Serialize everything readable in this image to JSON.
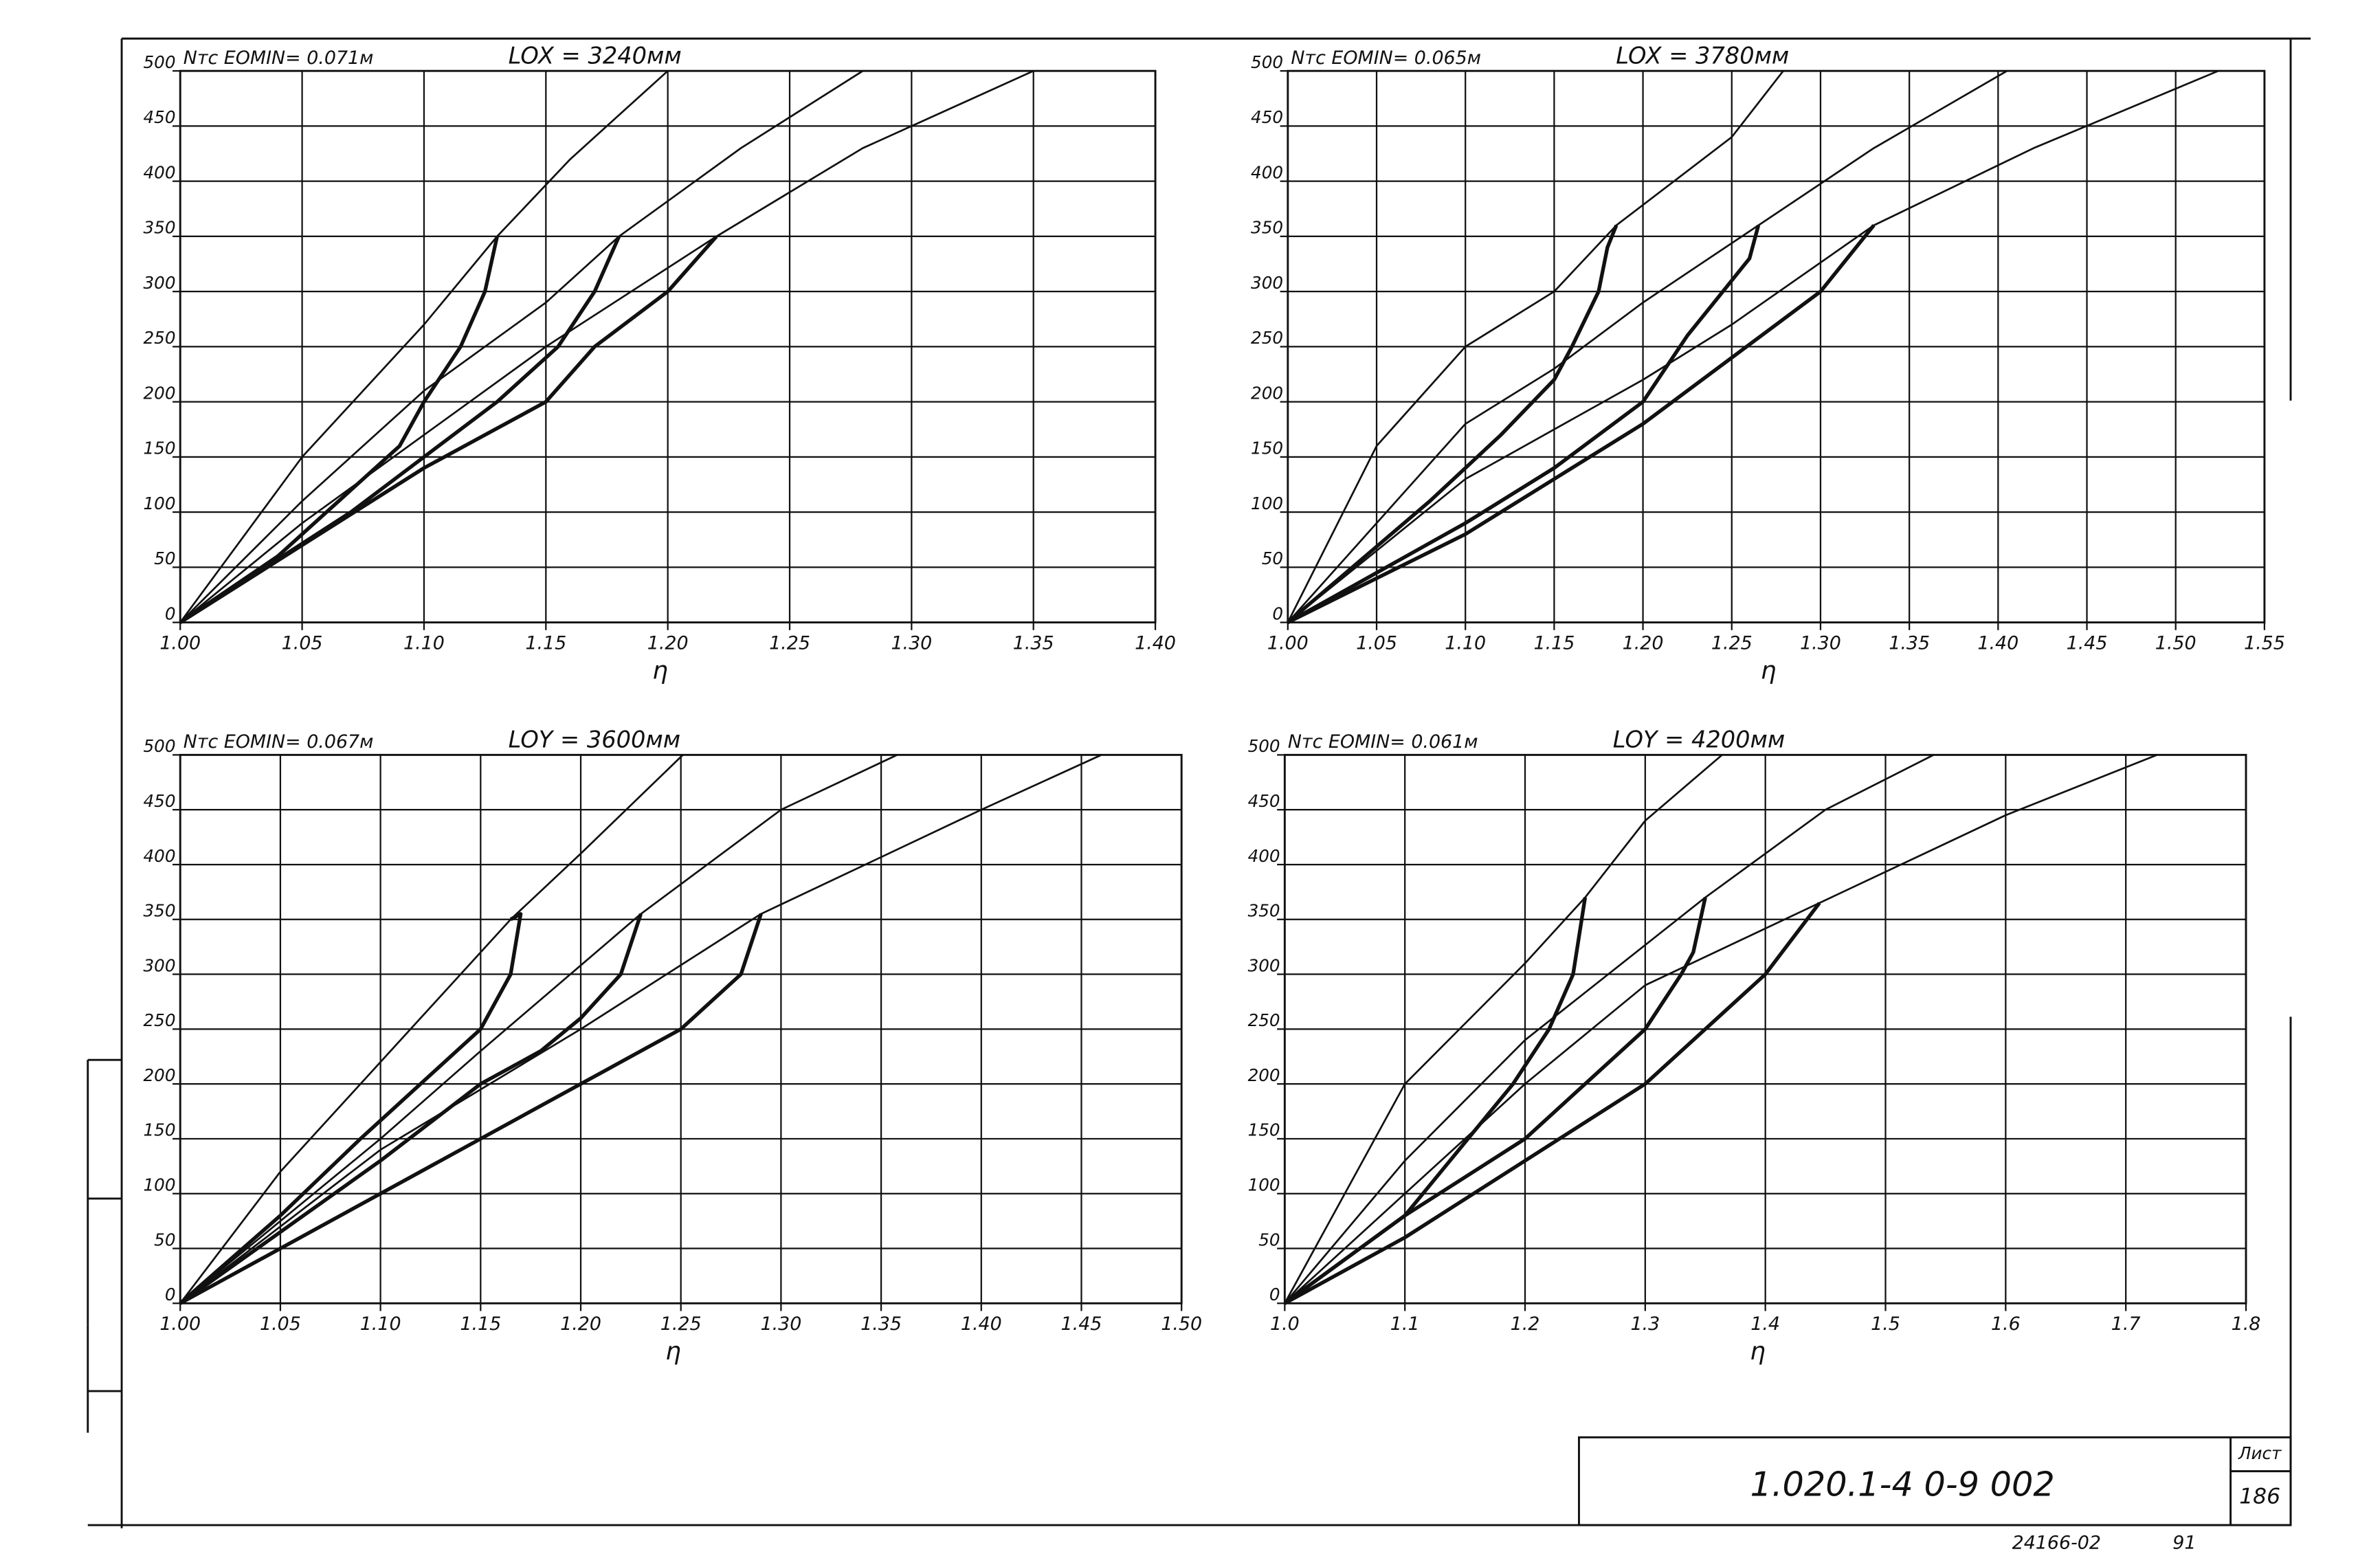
{
  "chart_data": [
    {
      "type": "line",
      "title": "Nтс EOMIN= 0.071м",
      "subtitle": "LOX = 3240мм",
      "x_label": "η",
      "xlim": [
        1.0,
        1.4
      ],
      "ylim": [
        0,
        500
      ],
      "grid": true,
      "xticks": [
        {
          "value": 1.0,
          "label": "1.00"
        },
        1.05,
        {
          "value": 1.1,
          "label": "1.10"
        },
        1.15,
        {
          "value": 1.2,
          "label": "1.20"
        },
        1.25,
        {
          "value": 1.3,
          "label": "1.30"
        },
        1.35,
        {
          "value": 1.4,
          "label": "1.40"
        }
      ],
      "yticks": [
        0,
        50,
        100,
        150,
        200,
        250,
        300,
        350,
        400,
        450,
        500
      ],
      "series": [
        {
          "color": "#111111",
          "style": "thin",
          "x": [
            1.0,
            1.05,
            1.1,
            1.13,
            1.16,
            1.2
          ],
          "values": [
            0,
            150,
            270,
            350,
            420,
            500
          ]
        },
        {
          "color": "#111111",
          "style": "thick",
          "x": [
            1.13,
            1.125,
            1.115,
            1.1,
            1.09,
            1.07,
            1.04,
            1.0
          ],
          "values": [
            350,
            300,
            250,
            200,
            160,
            120,
            60,
            0
          ]
        },
        {
          "color": "#111111",
          "style": "thin",
          "x": [
            1.0,
            1.05,
            1.1,
            1.15,
            1.18,
            1.23,
            1.28
          ],
          "values": [
            0,
            110,
            210,
            290,
            350,
            430,
            500
          ]
        },
        {
          "color": "#111111",
          "style": "thick",
          "x": [
            1.18,
            1.17,
            1.155,
            1.13,
            1.1,
            1.07,
            1.0
          ],
          "values": [
            350,
            300,
            250,
            200,
            150,
            100,
            0
          ]
        },
        {
          "color": "#111111",
          "style": "thin",
          "x": [
            1.0,
            1.05,
            1.1,
            1.15,
            1.22,
            1.28,
            1.35
          ],
          "values": [
            0,
            90,
            170,
            250,
            350,
            430,
            500
          ]
        },
        {
          "color": "#111111",
          "style": "thick",
          "x": [
            1.22,
            1.2,
            1.17,
            1.15,
            1.1,
            1.05,
            1.0
          ],
          "values": [
            350,
            300,
            250,
            200,
            140,
            70,
            0
          ]
        }
      ]
    },
    {
      "type": "line",
      "title": "Nтс EOMIN= 0.065м",
      "subtitle": "LOX = 3780мм",
      "x_label": "η",
      "xlim": [
        1.0,
        1.55
      ],
      "ylim": [
        0,
        500
      ],
      "grid": true,
      "xticks": [
        {
          "value": 1.0,
          "label": "1.00"
        },
        1.05,
        {
          "value": 1.1,
          "label": "1.10"
        },
        1.15,
        {
          "value": 1.2,
          "label": "1.20"
        },
        1.25,
        {
          "value": 1.3,
          "label": "1.30"
        },
        1.35,
        {
          "value": 1.4,
          "label": "1.40"
        },
        1.45,
        {
          "value": 1.5,
          "label": "1.50"
        },
        1.55
      ],
      "yticks": [
        0,
        50,
        100,
        150,
        200,
        250,
        300,
        350,
        400,
        450,
        500
      ],
      "series": [
        {
          "color": "#111111",
          "style": "thin",
          "x": [
            1.0,
            1.05,
            1.1,
            1.15,
            1.185,
            1.25,
            1.279
          ],
          "values": [
            0,
            160,
            250,
            300,
            360,
            440,
            500
          ]
        },
        {
          "color": "#111111",
          "style": "thick",
          "x": [
            1.185,
            1.18,
            1.175,
            1.16,
            1.15,
            1.12,
            1.08,
            1.0
          ],
          "values": [
            360,
            340,
            300,
            250,
            220,
            170,
            110,
            0
          ]
        },
        {
          "color": "#111111",
          "style": "thin",
          "x": [
            1.0,
            1.1,
            1.15,
            1.2,
            1.265,
            1.33,
            1.405
          ],
          "values": [
            0,
            180,
            230,
            290,
            360,
            430,
            500
          ]
        },
        {
          "color": "#111111",
          "style": "thick",
          "x": [
            1.265,
            1.26,
            1.245,
            1.225,
            1.2,
            1.15,
            1.1,
            1.0
          ],
          "values": [
            360,
            330,
            300,
            260,
            200,
            140,
            90,
            0
          ]
        },
        {
          "color": "#111111",
          "style": "thin",
          "x": [
            1.0,
            1.1,
            1.2,
            1.25,
            1.33,
            1.42,
            1.524
          ],
          "values": [
            0,
            130,
            220,
            270,
            360,
            430,
            500
          ]
        },
        {
          "color": "#111111",
          "style": "thick",
          "x": [
            1.33,
            1.3,
            1.25,
            1.2,
            1.15,
            1.1,
            1.0
          ],
          "values": [
            360,
            300,
            240,
            180,
            130,
            80,
            0
          ]
        }
      ]
    },
    {
      "type": "line",
      "title": "Nтс EOMIN= 0.067м",
      "subtitle": "LOY = 3600мм",
      "x_label": "η",
      "xlim": [
        1.0,
        1.5
      ],
      "ylim": [
        0,
        500
      ],
      "grid": true,
      "xticks": [
        {
          "value": 1.0,
          "label": "1.00"
        },
        1.05,
        {
          "value": 1.1,
          "label": "1.10"
        },
        1.15,
        {
          "value": 1.2,
          "label": "1.20"
        },
        1.25,
        {
          "value": 1.3,
          "label": "1.30"
        },
        1.35,
        {
          "value": 1.4,
          "label": "1.40"
        },
        1.45,
        {
          "value": 1.5,
          "label": "1.50"
        }
      ],
      "yticks": [
        0,
        50,
        100,
        150,
        200,
        250,
        300,
        350,
        400,
        450,
        500
      ],
      "series": [
        {
          "color": "#111111",
          "style": "thin",
          "x": [
            1.0,
            1.05,
            1.1,
            1.165,
            1.2,
            1.251
          ],
          "values": [
            0,
            120,
            220,
            350,
            410,
            500
          ]
        },
        {
          "color": "#111111",
          "style": "thick",
          "x": [
            1.165,
            1.17,
            1.165,
            1.15,
            1.12,
            1.09,
            1.05,
            1.0
          ],
          "values": [
            350,
            355,
            300,
            250,
            200,
            150,
            80,
            0
          ]
        },
        {
          "color": "#111111",
          "style": "thin",
          "x": [
            1.0,
            1.1,
            1.15,
            1.23,
            1.3,
            1.358
          ],
          "values": [
            0,
            150,
            230,
            355,
            450,
            500
          ]
        },
        {
          "color": "#111111",
          "style": "thick",
          "x": [
            1.23,
            1.22,
            1.2,
            1.18,
            1.15,
            1.1,
            1.0
          ],
          "values": [
            355,
            300,
            260,
            230,
            200,
            130,
            0
          ]
        },
        {
          "color": "#111111",
          "style": "thin",
          "x": [
            1.0,
            1.1,
            1.2,
            1.29,
            1.4,
            1.46
          ],
          "values": [
            0,
            140,
            250,
            355,
            450,
            500
          ]
        },
        {
          "color": "#111111",
          "style": "thick",
          "x": [
            1.29,
            1.28,
            1.25,
            1.2,
            1.15,
            1.1,
            1.0
          ],
          "values": [
            355,
            300,
            250,
            200,
            150,
            100,
            0
          ]
        }
      ]
    },
    {
      "type": "line",
      "title": "Nтс EOMIN= 0.061м",
      "subtitle": "LOY = 4200мм",
      "x_label": "η",
      "xlim": [
        1.0,
        1.8
      ],
      "ylim": [
        0,
        500
      ],
      "grid": true,
      "xticks": [
        {
          "value": 1.0,
          "label": "1.0"
        },
        1.1,
        1.2,
        1.3,
        1.4,
        1.5,
        1.6,
        1.7,
        1.8
      ],
      "yticks": [
        0,
        50,
        100,
        150,
        200,
        250,
        300,
        350,
        400,
        450,
        500
      ],
      "series": [
        {
          "color": "#111111",
          "style": "thin",
          "x": [
            1.0,
            1.1,
            1.2,
            1.25,
            1.3,
            1.364
          ],
          "values": [
            0,
            200,
            310,
            370,
            440,
            500
          ]
        },
        {
          "color": "#111111",
          "style": "thick",
          "x": [
            1.25,
            1.24,
            1.22,
            1.19,
            1.16,
            1.1,
            1.0
          ],
          "values": [
            370,
            300,
            250,
            200,
            160,
            80,
            0
          ]
        },
        {
          "color": "#111111",
          "style": "thin",
          "x": [
            1.0,
            1.1,
            1.2,
            1.35,
            1.45,
            1.54
          ],
          "values": [
            0,
            130,
            240,
            370,
            450,
            500
          ]
        },
        {
          "color": "#111111",
          "style": "thick",
          "x": [
            1.35,
            1.34,
            1.33,
            1.3,
            1.25,
            1.2,
            1.1,
            1.0
          ],
          "values": [
            370,
            320,
            300,
            250,
            200,
            150,
            80,
            0
          ]
        },
        {
          "color": "#111111",
          "style": "thin",
          "x": [
            1.0,
            1.2,
            1.3,
            1.445,
            1.6,
            1.726
          ],
          "values": [
            0,
            200,
            290,
            365,
            445,
            500
          ]
        },
        {
          "color": "#111111",
          "style": "thick",
          "x": [
            1.445,
            1.4,
            1.35,
            1.3,
            1.2,
            1.1,
            1.0
          ],
          "values": [
            365,
            300,
            250,
            200,
            130,
            60,
            0
          ]
        }
      ]
    }
  ],
  "title_block": {
    "designation": "1.020.1-4   0-9   002",
    "sheet_label": "Лист",
    "sheet_number": "186"
  },
  "footer": {
    "code": "24166-02",
    "number": "91"
  }
}
